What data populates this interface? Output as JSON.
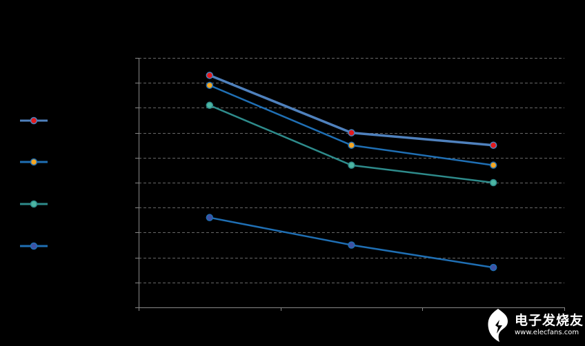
{
  "chart_data": {
    "type": "line",
    "categories": [
      "",
      "",
      ""
    ],
    "ylim": [
      0,
      10
    ],
    "grid": true,
    "legend_position": "left",
    "series": [
      {
        "values": [
          9.3,
          7.0,
          6.5
        ],
        "line_color": "#4f81bd",
        "marker_color": "#e31a1c"
      },
      {
        "values": [
          8.9,
          6.5,
          5.7
        ],
        "line_color": "#1f6fb4",
        "marker_color": "#f5a623"
      },
      {
        "values": [
          8.1,
          5.7,
          5.0
        ],
        "line_color": "#2e8b8b",
        "marker_color": "#4db6a3"
      },
      {
        "values": [
          3.6,
          2.5,
          1.6
        ],
        "line_color": "#1f6fb4",
        "marker_color": "#3f51a3"
      }
    ]
  },
  "colors": {
    "background": "#000000",
    "axis": "#8a8a8a",
    "grid": "#8a8a8a"
  },
  "watermark": {
    "logo_text": "电子发烧友",
    "url_text": "www.elecfans.com",
    "icon": "elecfans-logo-icon"
  }
}
